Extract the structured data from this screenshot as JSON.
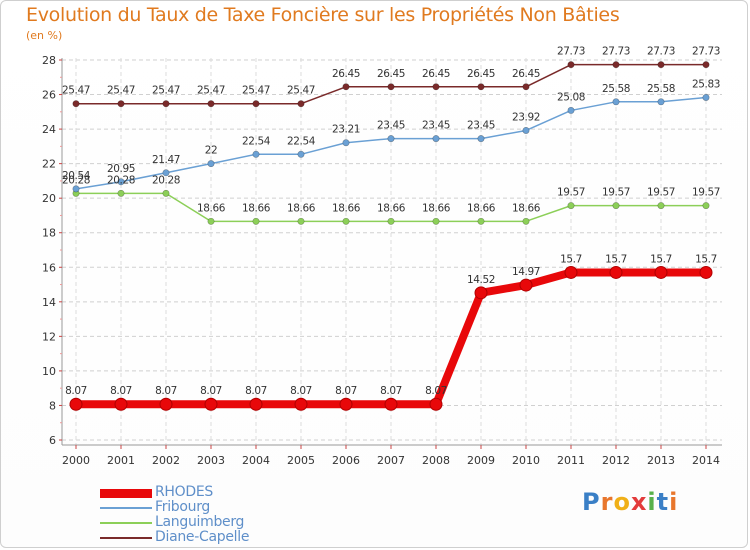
{
  "chart_data": {
    "type": "line",
    "title": "Evolution du Taux de Taxe Foncière sur les Propriétés Non Bâties",
    "ylabel": "(en %)",
    "xlabel": "",
    "ylim": [
      6,
      28
    ],
    "yticks": [
      6,
      8,
      10,
      12,
      14,
      16,
      18,
      20,
      22,
      24,
      26,
      28
    ],
    "categories": [
      "2000",
      "2001",
      "2002",
      "2003",
      "2004",
      "2005",
      "2006",
      "2007",
      "2008",
      "2009",
      "2010",
      "2011",
      "2012",
      "2013",
      "2014"
    ],
    "grid": "dashed-horizontal",
    "series": [
      {
        "name": "RHODES",
        "color": "#e8080a",
        "values": [
          8.07,
          8.07,
          8.07,
          8.07,
          8.07,
          8.07,
          8.07,
          8.07,
          8.07,
          14.52,
          14.97,
          15.7,
          15.7,
          15.7,
          15.7
        ],
        "labels": [
          "8.07",
          "8.07",
          "8.07",
          "8.07",
          "8.07",
          "8.07",
          "8.07",
          "8.07",
          "8.07",
          "14.52",
          "14.97",
          "15.7",
          "15.7",
          "15.7",
          "15.7"
        ]
      },
      {
        "name": "Fribourg",
        "color": "#6aa0d4",
        "values": [
          20.54,
          20.95,
          21.47,
          22,
          22.54,
          22.54,
          23.21,
          23.45,
          23.45,
          23.45,
          23.92,
          25.08,
          25.58,
          25.58,
          25.83
        ],
        "labels": [
          "20.54",
          "20.95",
          "21.47",
          "22",
          "22.54",
          "22.54",
          "23.21",
          "23.45",
          "23.45",
          "23.45",
          "23.92",
          "25.08",
          "25.58",
          "25.58",
          "25.83"
        ]
      },
      {
        "name": "Languimberg",
        "color": "#8ccf58",
        "values": [
          20.28,
          20.28,
          20.28,
          18.66,
          18.66,
          18.66,
          18.66,
          18.66,
          18.66,
          18.66,
          18.66,
          19.57,
          19.57,
          19.57,
          19.57
        ],
        "labels": [
          "20.28",
          "20.28",
          "20.28",
          "18.66",
          "18.66",
          "18.66",
          "18.66",
          "18.66",
          "18.66",
          "18.66",
          "18.66",
          "19.57",
          "19.57",
          "19.57",
          "19.57"
        ]
      },
      {
        "name": "Diane-Capelle",
        "color": "#7a2a2a",
        "values": [
          25.47,
          25.47,
          25.47,
          25.47,
          25.47,
          25.47,
          26.45,
          26.45,
          26.45,
          26.45,
          26.45,
          27.73,
          27.73,
          27.73,
          27.73
        ],
        "labels": [
          "25.47",
          "25.47",
          "25.47",
          "25.47",
          "25.47",
          "25.47",
          "26.45",
          "26.45",
          "26.45",
          "26.45",
          "26.45",
          "27.73",
          "27.73",
          "27.73",
          "27.73"
        ]
      }
    ]
  },
  "legend": {
    "items": [
      {
        "label": "RHODES"
      },
      {
        "label": "Fribourg"
      },
      {
        "label": "Languimberg"
      },
      {
        "label": "Diane-Capelle"
      }
    ]
  },
  "brand": {
    "letters": [
      "P",
      "r",
      "o",
      "x",
      "i",
      "t",
      "i"
    ],
    "letter_colors": [
      "#3a7fc6",
      "#e8762c",
      "#f0b018",
      "#e33b3b",
      "#58b14b",
      "#3a7fc6",
      "#e8762c"
    ]
  }
}
